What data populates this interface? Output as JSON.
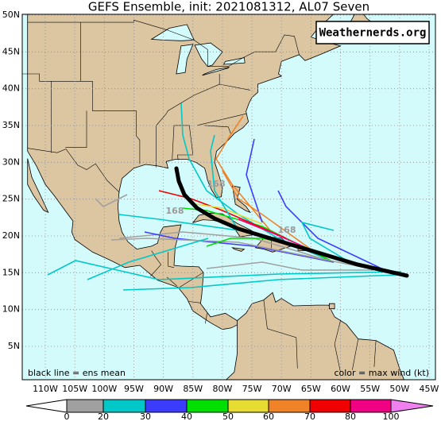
{
  "header": {
    "title": "GEFS Ensemble, init: 2021081312, AL07 Seven"
  },
  "watermark": "Weathernerds.org",
  "map": {
    "lat_labels": [
      "50N",
      "45N",
      "40N",
      "35N",
      "30N",
      "25N",
      "20N",
      "15N",
      "10N",
      "5N"
    ],
    "lon_labels": [
      "110W",
      "105W",
      "100W",
      "95W",
      "90W",
      "85W",
      "80W",
      "75W",
      "70W",
      "65W",
      "60W",
      "55W",
      "50W",
      "45W"
    ],
    "track_labels": [
      "168",
      "168",
      "168"
    ]
  },
  "legend": {
    "mean": "black line = ens mean",
    "color": "color = max wind (kt)"
  },
  "colorbar": {
    "labels": [
      "0",
      "20",
      "30",
      "40",
      "50",
      "60",
      "70",
      "80",
      "100"
    ]
  }
}
